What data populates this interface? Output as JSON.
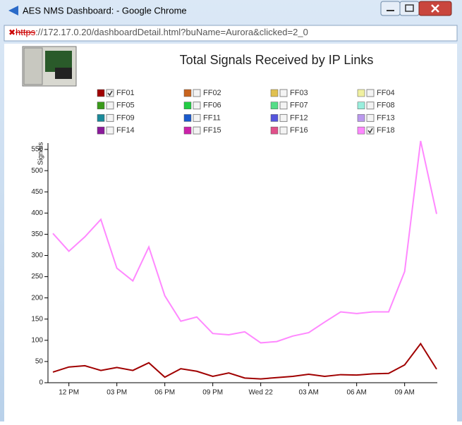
{
  "window": {
    "title": "AES NMS Dashboard: - Google Chrome",
    "url_scheme": "https",
    "url_rest": "://172.17.0.20/dashboardDetail.html?buName=Aurora&clicked=2_0"
  },
  "chart_data": {
    "type": "line",
    "title": "Total Signals Received by IP Links",
    "y_label": "Signals",
    "categories": [
      null,
      "12 PM",
      null,
      null,
      "03 PM",
      null,
      null,
      "06 PM",
      null,
      null,
      "09 PM",
      null,
      null,
      "Wed 22",
      null,
      null,
      "03 AM",
      null,
      null,
      "06 AM",
      null,
      null,
      "09 AM",
      null,
      null
    ],
    "ylim": [
      0,
      565
    ],
    "yticks": [
      0,
      50,
      100,
      150,
      200,
      250,
      300,
      350,
      400,
      450,
      500,
      550
    ],
    "series": [
      {
        "name": "FF01",
        "color": "#a00000",
        "checked": true,
        "values": [
          25,
          37,
          40,
          29,
          36,
          29,
          47,
          13,
          33,
          27,
          15,
          23,
          11,
          9,
          12,
          15,
          20,
          15,
          19,
          18,
          21,
          22,
          42,
          92,
          32
        ]
      },
      {
        "name": "FF02",
        "color": "#c8641e",
        "checked": false
      },
      {
        "name": "FF03",
        "color": "#e0c050",
        "checked": false
      },
      {
        "name": "FF04",
        "color": "#f0f0a0",
        "checked": false
      },
      {
        "name": "FF05",
        "color": "#3a9a1a",
        "checked": false
      },
      {
        "name": "FF06",
        "color": "#22cc44",
        "checked": false
      },
      {
        "name": "FF07",
        "color": "#55dd88",
        "checked": false
      },
      {
        "name": "FF08",
        "color": "#99eedd",
        "checked": false
      },
      {
        "name": "FF09",
        "color": "#1a8a9a",
        "checked": false
      },
      {
        "name": "FF11",
        "color": "#1a5acc",
        "checked": false
      },
      {
        "name": "FF12",
        "color": "#5555dd",
        "checked": false
      },
      {
        "name": "FF13",
        "color": "#bb99ee",
        "checked": false
      },
      {
        "name": "FF14",
        "color": "#8a1a9a",
        "checked": false
      },
      {
        "name": "FF15",
        "color": "#cc22aa",
        "checked": false
      },
      {
        "name": "FF16",
        "color": "#e0508a",
        "checked": false
      },
      {
        "name": "FF18",
        "color": "#ff88ff",
        "checked": true,
        "values": [
          352,
          310,
          344,
          385,
          270,
          240,
          320,
          205,
          145,
          155,
          116,
          113,
          120,
          94,
          97,
          110,
          118,
          143,
          167,
          163,
          167,
          167,
          262,
          570,
          398
        ]
      }
    ]
  }
}
